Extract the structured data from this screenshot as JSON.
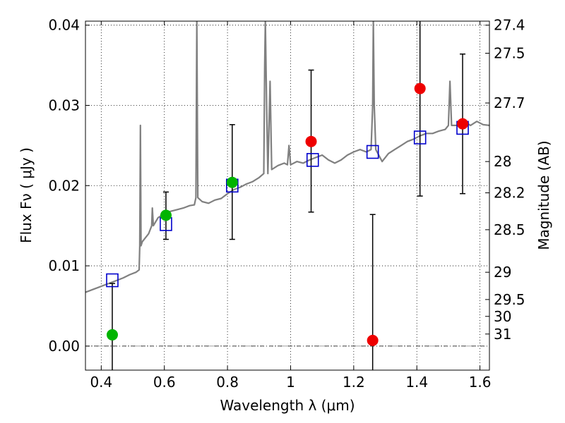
{
  "chart_data": {
    "type": "scatter",
    "xlabel": "Wavelength  λ (μm)",
    "ylabel": "Flux  Fν  ( μJy )",
    "y2label": "Magnitude (AB)",
    "xlim": [
      0.35,
      1.63
    ],
    "ylim": [
      -0.003,
      0.0405
    ],
    "x_ticks": [
      0.4,
      0.6,
      0.8,
      1.0,
      1.2,
      1.4,
      1.6
    ],
    "x_tick_labels": [
      "0.4",
      "0.6",
      "0.8",
      "1",
      "1.2",
      "1.4",
      "1.6"
    ],
    "y_ticks": [
      0.0,
      0.01,
      0.02,
      0.03,
      0.04
    ],
    "y_tick_labels": [
      "0.00",
      "0.01",
      "0.02",
      "0.03",
      "0.04"
    ],
    "y2_ticks": [
      {
        "label": "27.4",
        "flux": 0.04
      },
      {
        "label": "27.5",
        "flux": 0.0365
      },
      {
        "label": "27.7",
        "flux": 0.0303
      },
      {
        "label": "28",
        "flux": 0.023
      },
      {
        "label": "28.2",
        "flux": 0.0191
      },
      {
        "label": "28.5",
        "flux": 0.0145
      },
      {
        "label": "29",
        "flux": 0.0092
      },
      {
        "label": "29.5",
        "flux": 0.0058
      },
      {
        "label": "30",
        "flux": 0.0037
      },
      {
        "label": "31",
        "flux": 0.0015
      }
    ],
    "grid": true,
    "zero_line": true,
    "series": [
      {
        "kind": "model_spectrum",
        "color": "#808080",
        "points": [
          [
            0.35,
            0.0067
          ],
          [
            0.37,
            0.007
          ],
          [
            0.39,
            0.0073
          ],
          [
            0.41,
            0.0076
          ],
          [
            0.43,
            0.0079
          ],
          [
            0.45,
            0.0082
          ],
          [
            0.47,
            0.0085
          ],
          [
            0.49,
            0.0089
          ],
          [
            0.51,
            0.0092
          ],
          [
            0.52,
            0.0095
          ],
          [
            0.522,
            0.0125
          ],
          [
            0.524,
            0.0275
          ],
          [
            0.526,
            0.0125
          ],
          [
            0.53,
            0.013
          ],
          [
            0.55,
            0.014
          ],
          [
            0.56,
            0.015
          ],
          [
            0.562,
            0.0172
          ],
          [
            0.565,
            0.015
          ],
          [
            0.58,
            0.016
          ],
          [
            0.6,
            0.0165
          ],
          [
            0.62,
            0.0168
          ],
          [
            0.64,
            0.017
          ],
          [
            0.66,
            0.0172
          ],
          [
            0.68,
            0.0175
          ],
          [
            0.695,
            0.0176
          ],
          [
            0.7,
            0.0185
          ],
          [
            0.703,
            0.0405
          ],
          [
            0.706,
            0.0185
          ],
          [
            0.72,
            0.018
          ],
          [
            0.74,
            0.0178
          ],
          [
            0.76,
            0.0182
          ],
          [
            0.78,
            0.0184
          ],
          [
            0.8,
            0.019
          ],
          [
            0.82,
            0.0195
          ],
          [
            0.84,
            0.0198
          ],
          [
            0.86,
            0.0202
          ],
          [
            0.88,
            0.0205
          ],
          [
            0.9,
            0.021
          ],
          [
            0.915,
            0.0215
          ],
          [
            0.918,
            0.035
          ],
          [
            0.92,
            0.0405
          ],
          [
            0.924,
            0.03
          ],
          [
            0.928,
            0.0215
          ],
          [
            0.935,
            0.033
          ],
          [
            0.94,
            0.022
          ],
          [
            0.96,
            0.0225
          ],
          [
            0.98,
            0.0228
          ],
          [
            0.99,
            0.0226
          ],
          [
            0.995,
            0.025
          ],
          [
            1.0,
            0.0226
          ],
          [
            1.02,
            0.023
          ],
          [
            1.04,
            0.0228
          ],
          [
            1.06,
            0.0232
          ],
          [
            1.08,
            0.0235
          ],
          [
            1.1,
            0.0238
          ],
          [
            1.12,
            0.0232
          ],
          [
            1.14,
            0.0228
          ],
          [
            1.16,
            0.0232
          ],
          [
            1.18,
            0.0238
          ],
          [
            1.2,
            0.0242
          ],
          [
            1.22,
            0.0245
          ],
          [
            1.24,
            0.0242
          ],
          [
            1.255,
            0.0245
          ],
          [
            1.26,
            0.03
          ],
          [
            1.262,
            0.0405
          ],
          [
            1.265,
            0.03
          ],
          [
            1.27,
            0.0245
          ],
          [
            1.29,
            0.023
          ],
          [
            1.31,
            0.024
          ],
          [
            1.33,
            0.0245
          ],
          [
            1.35,
            0.025
          ],
          [
            1.37,
            0.0255
          ],
          [
            1.39,
            0.0258
          ],
          [
            1.41,
            0.0262
          ],
          [
            1.43,
            0.0265
          ],
          [
            1.45,
            0.0265
          ],
          [
            1.47,
            0.0268
          ],
          [
            1.49,
            0.027
          ],
          [
            1.5,
            0.0275
          ],
          [
            1.505,
            0.033
          ],
          [
            1.51,
            0.0275
          ],
          [
            1.53,
            0.0275
          ],
          [
            1.55,
            0.028
          ],
          [
            1.57,
            0.0275
          ],
          [
            1.59,
            0.028
          ],
          [
            1.61,
            0.0276
          ],
          [
            1.63,
            0.0275
          ]
        ]
      },
      {
        "kind": "model_photometry",
        "marker": "open-square",
        "color": "#0000cc",
        "points": [
          [
            0.435,
            0.0082
          ],
          [
            0.605,
            0.0152
          ],
          [
            0.815,
            0.02
          ],
          [
            1.07,
            0.0232
          ],
          [
            1.26,
            0.0242
          ],
          [
            1.41,
            0.026
          ],
          [
            1.545,
            0.0272
          ]
        ]
      },
      {
        "kind": "observed_hst",
        "marker": "filled-circle",
        "color": "#00b400",
        "points": [
          [
            0.435,
            0.0014
          ],
          [
            0.605,
            0.0163
          ],
          [
            0.815,
            0.0204
          ]
        ]
      },
      {
        "kind": "observed_ir",
        "marker": "filled-circle",
        "color": "#ee0000",
        "points": [
          [
            1.065,
            0.0255
          ],
          [
            1.26,
            0.0007
          ],
          [
            1.41,
            0.0321
          ],
          [
            1.545,
            0.0277
          ]
        ]
      }
    ],
    "error_bars": [
      {
        "x": 0.435,
        "low": -0.005,
        "high": 0.0078
      },
      {
        "x": 0.605,
        "low": 0.0133,
        "high": 0.0192
      },
      {
        "x": 0.815,
        "low": 0.0133,
        "high": 0.0276
      },
      {
        "x": 1.065,
        "low": 0.0167,
        "high": 0.0344
      },
      {
        "x": 1.26,
        "low": -0.005,
        "high": 0.0164
      },
      {
        "x": 1.41,
        "low": 0.0187,
        "high": 0.042
      },
      {
        "x": 1.545,
        "low": 0.019,
        "high": 0.0364
      }
    ]
  }
}
